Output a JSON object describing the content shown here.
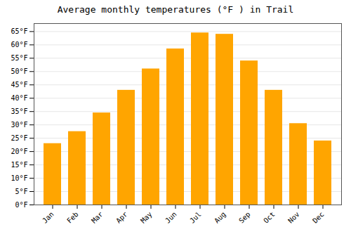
{
  "chart_data": {
    "type": "bar",
    "title": "Average monthly temperatures (°F ) in Trail",
    "categories": [
      "Jan",
      "Feb",
      "Mar",
      "Apr",
      "May",
      "Jun",
      "Jul",
      "Aug",
      "Sep",
      "Oct",
      "Nov",
      "Dec"
    ],
    "values": [
      23,
      27.5,
      34.5,
      43,
      51,
      58.5,
      64.5,
      64,
      54,
      43,
      30.5,
      24
    ],
    "color": "#FFA500",
    "ylim": [
      0,
      68
    ],
    "yticks": [
      {
        "value": 0,
        "label": "0°F"
      },
      {
        "value": 5,
        "label": "5°F"
      },
      {
        "value": 10,
        "label": "10°F"
      },
      {
        "value": 15,
        "label": "15°F"
      },
      {
        "value": 20,
        "label": "20°F"
      },
      {
        "value": 25,
        "label": "25°F"
      },
      {
        "value": 30,
        "label": "30°F"
      },
      {
        "value": 35,
        "label": "35°F"
      },
      {
        "value": 40,
        "label": "40°F"
      },
      {
        "value": 45,
        "label": "45°F"
      },
      {
        "value": 50,
        "label": "50°F"
      },
      {
        "value": 55,
        "label": "55°F"
      },
      {
        "value": 60,
        "label": "60°F"
      },
      {
        "value": 65,
        "label": "65°F"
      }
    ],
    "grid": true
  }
}
